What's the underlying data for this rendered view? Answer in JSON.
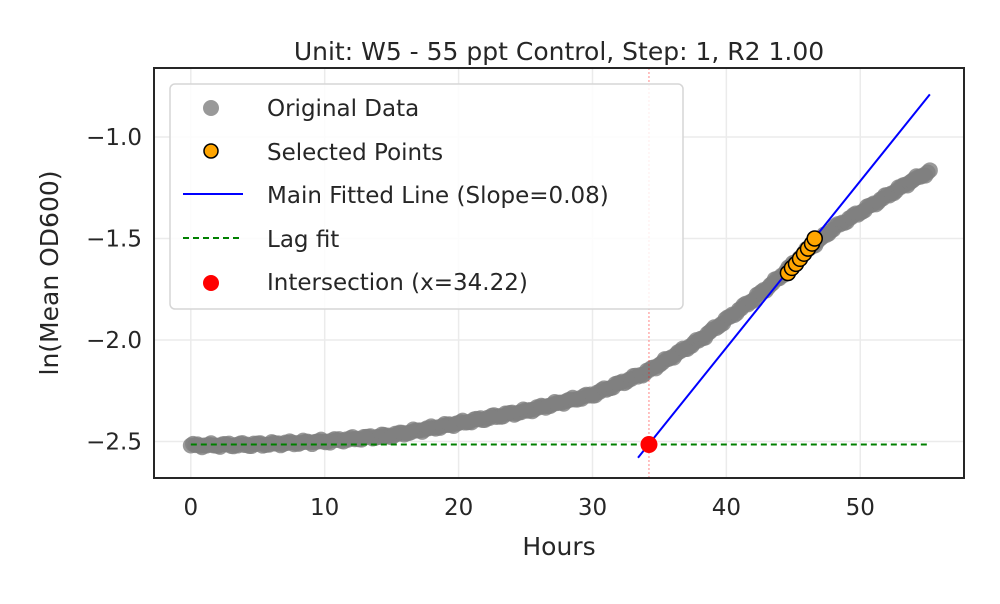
{
  "chart_data": {
    "type": "scatter",
    "title": "Unit: W5 - 55 ppt Control, Step: 1, R2 1.00",
    "xlabel": "Hours",
    "ylabel": "ln(Mean OD600)",
    "xlim": [
      -2.75,
      57.75
    ],
    "ylim": [
      -2.68,
      -0.66
    ],
    "xticks": [
      0,
      10,
      20,
      30,
      40,
      50
    ],
    "yticks": [
      -2.5,
      -2.0,
      -1.5,
      -1.0
    ],
    "xtick_labels": [
      "0",
      "10",
      "20",
      "30",
      "40",
      "50"
    ],
    "ytick_labels": [
      "−2.5",
      "−2.0",
      "−1.5",
      "−1.0"
    ],
    "grid": true,
    "legend_position": "upper-left",
    "intersection_x": 34.22,
    "main_slope": 0.08,
    "series": [
      {
        "name": "Original Data",
        "kind": "scatter",
        "color": "#808080",
        "x_start": 0,
        "x_end": 55.2,
        "y_anchors": [
          [
            0,
            -2.52
          ],
          [
            5,
            -2.515
          ],
          [
            10,
            -2.5
          ],
          [
            15,
            -2.47
          ],
          [
            20,
            -2.41
          ],
          [
            25,
            -2.35
          ],
          [
            30,
            -2.27
          ],
          [
            34,
            -2.16
          ],
          [
            38,
            -2.0
          ],
          [
            42,
            -1.8
          ],
          [
            44,
            -1.69
          ],
          [
            46,
            -1.56
          ],
          [
            48,
            -1.45
          ],
          [
            50,
            -1.37
          ],
          [
            52,
            -1.29
          ],
          [
            54,
            -1.21
          ],
          [
            55.2,
            -1.17
          ]
        ]
      },
      {
        "name": "Selected Points",
        "kind": "scatter",
        "color": "#FFA500",
        "edgecolor": "#000000",
        "x": [
          44.6,
          44.9,
          45.2,
          45.5,
          45.8,
          46.1,
          46.4,
          46.6
        ],
        "y": [
          -1.67,
          -1.645,
          -1.625,
          -1.6,
          -1.575,
          -1.55,
          -1.525,
          -1.5
        ]
      },
      {
        "name": "Main Fitted Line (Slope=0.08)",
        "kind": "line",
        "color": "#0000FF",
        "style": "solid",
        "x": [
          33.4,
          55.2
        ],
        "y": [
          -2.58,
          -0.79
        ]
      },
      {
        "name": "Lag fit",
        "kind": "line",
        "color": "#008000",
        "style": "dashed",
        "x": [
          0,
          55.2
        ],
        "y": [
          -2.515,
          -2.515
        ]
      },
      {
        "name": "Intersection (x=34.22)",
        "kind": "scatter",
        "color": "#FF0000",
        "x": [
          34.22
        ],
        "y": [
          -2.515
        ]
      }
    ]
  }
}
